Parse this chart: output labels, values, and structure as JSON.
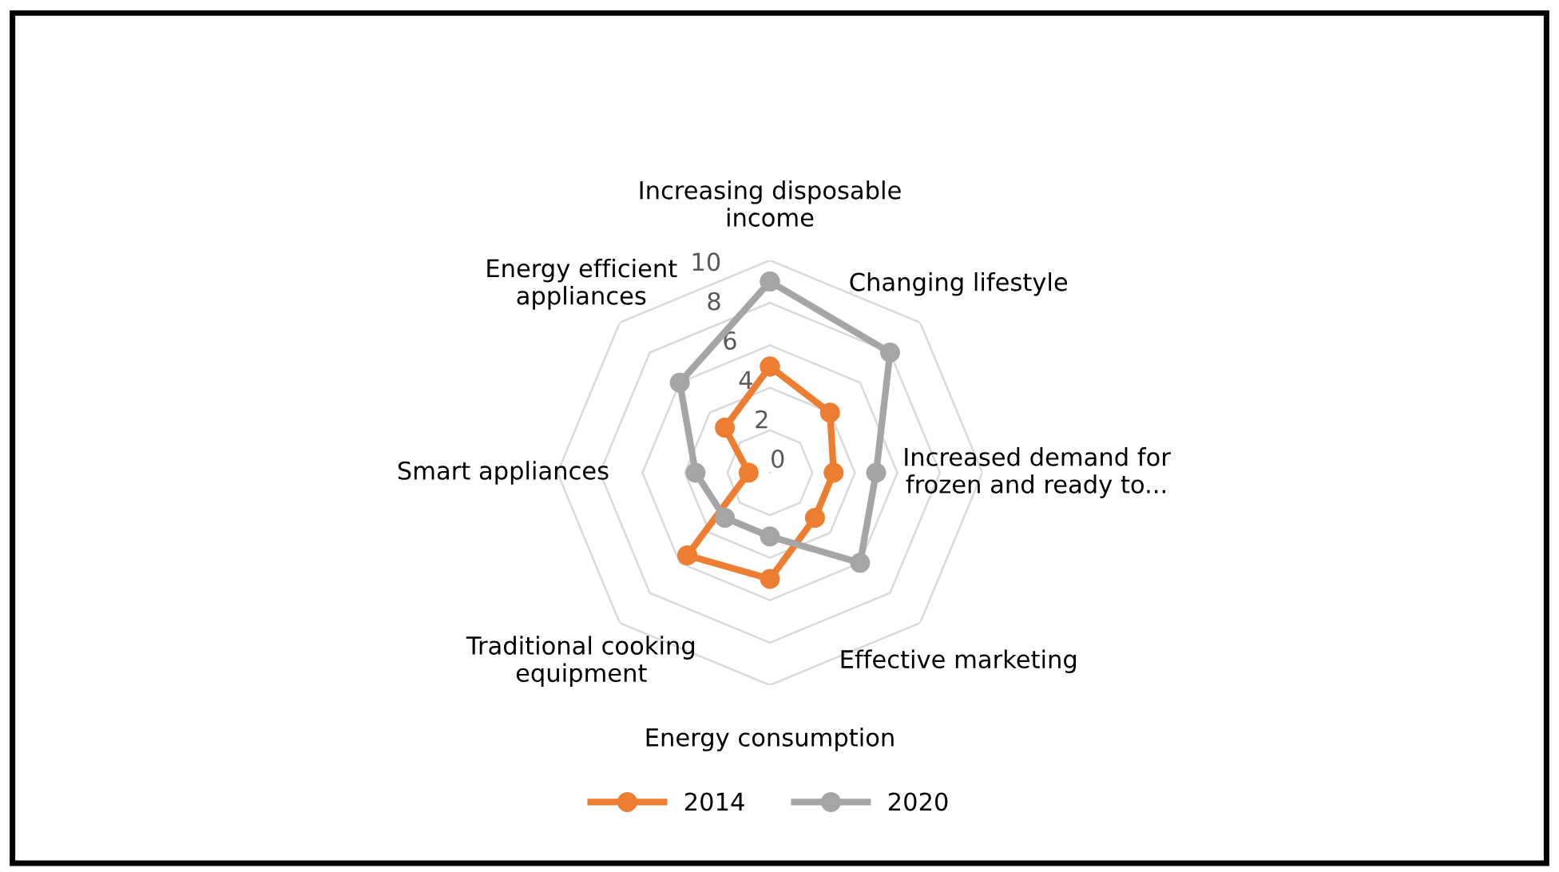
{
  "chart_data": {
    "type": "radar",
    "categories": [
      "Increasing disposable\nincome",
      "Changing lifestyle",
      "Increased demand for\nfrozen and ready to...",
      "Effective marketing",
      "Energy consumption",
      "Traditional cooking\nequipment",
      "Smart appliances",
      "Energy efficient\nappliances"
    ],
    "series": [
      {
        "name": "2014",
        "color": "#ed7d31",
        "values": [
          5,
          4,
          3,
          3,
          5,
          5.5,
          1,
          3
        ]
      },
      {
        "name": "2020",
        "color": "#a5a5a5",
        "values": [
          9,
          8,
          5,
          6,
          3,
          3,
          3.5,
          6
        ]
      }
    ],
    "ylim": [
      0,
      10
    ],
    "yticks": [
      0,
      2,
      4,
      6,
      8,
      10
    ],
    "grid": true,
    "legend": "bottom",
    "marker": "circle",
    "line_style": "solid"
  }
}
